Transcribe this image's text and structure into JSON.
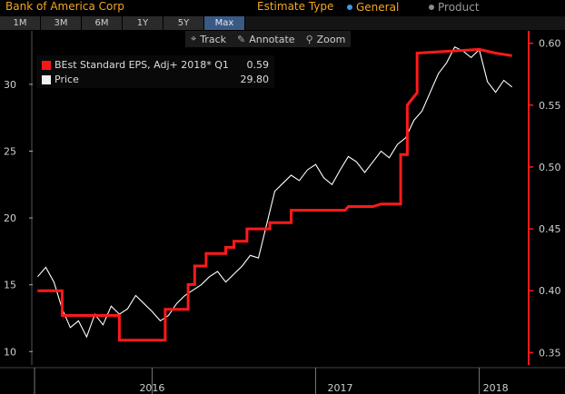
{
  "header": {
    "company": "Bank of America Corp",
    "estimate_type_label": "Estimate Type",
    "option_general": "General",
    "option_product": "Product"
  },
  "ranges": [
    "1M",
    "3M",
    "6M",
    "1Y",
    "5Y",
    "Max"
  ],
  "active_range": "Max",
  "toolbar": {
    "track": "Track",
    "annotate": "Annotate",
    "zoom": "Zoom"
  },
  "legend": {
    "eps_label": "BEst Standard EPS, Adj+ 2018* Q1",
    "eps_value": "0.59",
    "price_label": "Price",
    "price_value": "29.80"
  },
  "colors": {
    "eps": "#ff1a1a",
    "price": "#ffffff",
    "accent": "#f5a623",
    "active_button": "#3a5a86"
  },
  "chart_data": {
    "type": "line",
    "x_labels": [
      "2016",
      "2017",
      "2018"
    ],
    "left_axis": {
      "ticks": [
        10,
        15,
        20,
        25,
        30
      ],
      "range": [
        9,
        34
      ]
    },
    "right_axis": {
      "ticks": [
        0.35,
        0.4,
        0.45,
        0.5,
        0.55,
        0.6
      ],
      "range": [
        0.34,
        0.61
      ]
    },
    "series": [
      {
        "name": "Price",
        "axis": "left",
        "points": [
          [
            2015.3,
            15.6
          ],
          [
            2015.35,
            16.3
          ],
          [
            2015.4,
            15.2
          ],
          [
            2015.45,
            13.2
          ],
          [
            2015.5,
            11.8
          ],
          [
            2015.55,
            12.3
          ],
          [
            2015.6,
            11.1
          ],
          [
            2015.65,
            12.8
          ],
          [
            2015.7,
            12.0
          ],
          [
            2015.75,
            13.4
          ],
          [
            2015.8,
            12.8
          ],
          [
            2015.85,
            13.2
          ],
          [
            2015.9,
            14.2
          ],
          [
            2015.95,
            13.6
          ],
          [
            2016.0,
            13.0
          ],
          [
            2016.05,
            12.3
          ],
          [
            2016.1,
            12.7
          ],
          [
            2016.15,
            13.6
          ],
          [
            2016.2,
            14.2
          ],
          [
            2016.25,
            14.6
          ],
          [
            2016.3,
            15.0
          ],
          [
            2016.35,
            15.6
          ],
          [
            2016.4,
            16.0
          ],
          [
            2016.45,
            15.2
          ],
          [
            2016.5,
            15.8
          ],
          [
            2016.55,
            16.4
          ],
          [
            2016.6,
            17.2
          ],
          [
            2016.65,
            17.0
          ],
          [
            2016.7,
            19.5
          ],
          [
            2016.75,
            22.0
          ],
          [
            2016.8,
            22.6
          ],
          [
            2016.85,
            23.2
          ],
          [
            2016.9,
            22.8
          ],
          [
            2016.95,
            23.6
          ],
          [
            2017.0,
            24.0
          ],
          [
            2017.05,
            23.0
          ],
          [
            2017.1,
            22.5
          ],
          [
            2017.15,
            23.6
          ],
          [
            2017.2,
            24.6
          ],
          [
            2017.25,
            24.2
          ],
          [
            2017.3,
            23.4
          ],
          [
            2017.35,
            24.2
          ],
          [
            2017.4,
            25.0
          ],
          [
            2017.45,
            24.5
          ],
          [
            2017.5,
            25.5
          ],
          [
            2017.55,
            26.0
          ],
          [
            2017.6,
            27.3
          ],
          [
            2017.65,
            28.0
          ],
          [
            2017.7,
            29.4
          ],
          [
            2017.75,
            30.8
          ],
          [
            2017.8,
            31.6
          ],
          [
            2017.85,
            32.8
          ],
          [
            2017.9,
            32.5
          ],
          [
            2017.95,
            32.0
          ],
          [
            2018.0,
            32.6
          ],
          [
            2018.05,
            30.2
          ],
          [
            2018.1,
            29.4
          ],
          [
            2018.15,
            30.3
          ],
          [
            2018.2,
            29.8
          ]
        ]
      },
      {
        "name": "BEst Standard EPS, Adj+ 2018* Q1",
        "axis": "right",
        "points": [
          [
            2015.3,
            0.4
          ],
          [
            2015.45,
            0.4
          ],
          [
            2015.45,
            0.38
          ],
          [
            2015.8,
            0.38
          ],
          [
            2015.8,
            0.36
          ],
          [
            2016.08,
            0.36
          ],
          [
            2016.08,
            0.385
          ],
          [
            2016.22,
            0.385
          ],
          [
            2016.22,
            0.405
          ],
          [
            2016.26,
            0.405
          ],
          [
            2016.26,
            0.42
          ],
          [
            2016.33,
            0.42
          ],
          [
            2016.33,
            0.43
          ],
          [
            2016.45,
            0.43
          ],
          [
            2016.45,
            0.435
          ],
          [
            2016.5,
            0.435
          ],
          [
            2016.5,
            0.44
          ],
          [
            2016.58,
            0.44
          ],
          [
            2016.58,
            0.45
          ],
          [
            2016.72,
            0.45
          ],
          [
            2016.72,
            0.455
          ],
          [
            2016.85,
            0.455
          ],
          [
            2016.85,
            0.465
          ],
          [
            2017.18,
            0.465
          ],
          [
            2017.2,
            0.468
          ],
          [
            2017.35,
            0.468
          ],
          [
            2017.4,
            0.47
          ],
          [
            2017.52,
            0.47
          ],
          [
            2017.52,
            0.51
          ],
          [
            2017.56,
            0.51
          ],
          [
            2017.56,
            0.55
          ],
          [
            2017.62,
            0.56
          ],
          [
            2017.62,
            0.592
          ],
          [
            2018.0,
            0.595
          ],
          [
            2018.1,
            0.592
          ],
          [
            2018.2,
            0.59
          ]
        ]
      }
    ]
  }
}
